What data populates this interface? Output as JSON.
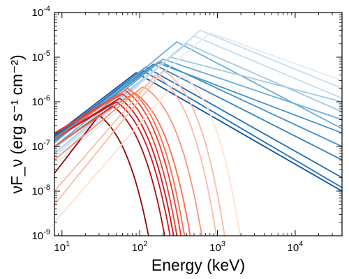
{
  "chart_data": {
    "type": "line",
    "title": "",
    "xlabel": "Energy (keV)",
    "ylabel": "νF_ν (erg s⁻¹ cm⁻²)",
    "x_scale": "log",
    "y_scale": "log",
    "xlim": [
      8,
      40000
    ],
    "ylim": [
      1e-09,
      0.0001
    ],
    "x_ticks": [
      {
        "value": 10,
        "base": "10",
        "exp": "1"
      },
      {
        "value": 100,
        "base": "10",
        "exp": "2"
      },
      {
        "value": 1000,
        "base": "10",
        "exp": "3"
      },
      {
        "value": 10000,
        "base": "10",
        "exp": "4"
      }
    ],
    "y_ticks": [
      {
        "value": 1e-09,
        "base": "10",
        "exp": "-9"
      },
      {
        "value": 1e-08,
        "base": "10",
        "exp": "-8"
      },
      {
        "value": 1e-07,
        "base": "10",
        "exp": "-7"
      },
      {
        "value": 1e-06,
        "base": "10",
        "exp": "-6"
      },
      {
        "value": 1e-05,
        "base": "10",
        "exp": "-5"
      },
      {
        "value": 0.0001,
        "base": "10",
        "exp": "-4"
      }
    ],
    "grid": false,
    "legend": "none",
    "series_blue": [
      {
        "color": "#08519c",
        "x": [
          8,
          90,
          40000
        ],
        "y": [
          1.8e-07,
          4.5e-06,
          1e-08
        ]
      },
      {
        "color": "#2171b5",
        "x": [
          8,
          120,
          40000
        ],
        "y": [
          1.6e-07,
          6e-06,
          2e-08
        ]
      },
      {
        "color": "#2171b5",
        "x": [
          8,
          110,
          40000
        ],
        "y": [
          1.7e-07,
          5e-06,
          1.2e-08
        ]
      },
      {
        "color": "#3182bd",
        "x": [
          8,
          150,
          40000
        ],
        "y": [
          1.5e-07,
          7e-06,
          5e-08
        ]
      },
      {
        "color": "#4292c6",
        "x": [
          8,
          180,
          40000
        ],
        "y": [
          1.4e-07,
          8e-06,
          1e-07
        ]
      },
      {
        "color": "#4292c6",
        "x": [
          8,
          170,
          40000
        ],
        "y": [
          1.3e-07,
          7.5e-06,
          2e-07
        ]
      },
      {
        "color": "#6baed6",
        "x": [
          8,
          300,
          40000
        ],
        "y": [
          1.2e-07,
          2.2e-05,
          2.5e-07
        ]
      },
      {
        "color": "#6baed6",
        "x": [
          8,
          200,
          40000
        ],
        "y": [
          1e-07,
          9e-06,
          4e-07
        ]
      },
      {
        "color": "#9ecae1",
        "x": [
          8,
          250,
          40000
        ],
        "y": [
          9e-08,
          1e-05,
          1e-06
        ]
      },
      {
        "color": "#9ecae1",
        "x": [
          8,
          400,
          40000
        ],
        "y": [
          7e-08,
          2e-05,
          6e-07
        ]
      },
      {
        "color": "#c6dbef",
        "x": [
          8,
          600,
          40000
        ],
        "y": [
          5e-08,
          4e-05,
          2e-06
        ]
      },
      {
        "color": "#c6dbef",
        "x": [
          8,
          500,
          40000
        ],
        "y": [
          6e-08,
          3e-05,
          1.2e-06
        ]
      },
      {
        "color": "#deebf7",
        "x": [
          8,
          800,
          40000
        ],
        "y": [
          4e-08,
          3.5e-05,
          3e-06
        ]
      }
    ],
    "series_red": [
      {
        "color": "#99000d",
        "peak_energy": 30,
        "peak_flux": 5e-07,
        "low_flux": 2.5e-08,
        "slope_low": 0.45,
        "cutoff": 13
      },
      {
        "color": "#a50f15",
        "peak_energy": 45,
        "peak_flux": 8e-07,
        "low_flux": 1e-07,
        "slope_low": 0.6,
        "cutoff": 20
      },
      {
        "color": "#cb181d",
        "peak_energy": 50,
        "peak_flux": 1e-06,
        "low_flux": 1.5e-07,
        "slope_low": 0.6,
        "cutoff": 23
      },
      {
        "color": "#cb181d",
        "peak_energy": 55,
        "peak_flux": 1.2e-06,
        "low_flux": 1.5e-07,
        "slope_low": 0.6,
        "cutoff": 25
      },
      {
        "color": "#ef3b2c",
        "peak_energy": 60,
        "peak_flux": 1.5e-06,
        "low_flux": 2e-07,
        "slope_low": 0.6,
        "cutoff": 27
      },
      {
        "color": "#ef3b2c",
        "peak_energy": 65,
        "peak_flux": 1.8e-06,
        "low_flux": 2e-07,
        "slope_low": 0.6,
        "cutoff": 30
      },
      {
        "color": "#fb6a4a",
        "peak_energy": 70,
        "peak_flux": 2e-06,
        "low_flux": 1.5e-07,
        "slope_low": 0.6,
        "cutoff": 33
      },
      {
        "color": "#fb6a4a",
        "peak_energy": 85,
        "peak_flux": 1.6e-06,
        "low_flux": 1e-07,
        "slope_low": 0.7,
        "cutoff": 40
      },
      {
        "color": "#fc9272",
        "peak_energy": 110,
        "peak_flux": 2.2e-06,
        "low_flux": 5e-08,
        "slope_low": 0.8,
        "cutoff": 55
      },
      {
        "color": "#fcbba1",
        "peak_energy": 160,
        "peak_flux": 4e-06,
        "low_flux": 1e-08,
        "slope_low": 1.0,
        "cutoff": 80
      },
      {
        "color": "#fcbba1",
        "peak_energy": 200,
        "peak_flux": 5e-06,
        "low_flux": 5e-09,
        "slope_low": 1.1,
        "cutoff": 100
      },
      {
        "color": "#fee0d2",
        "peak_energy": 350,
        "peak_flux": 4e-06,
        "low_flux": 2e-09,
        "slope_low": 1.1,
        "cutoff": 160
      }
    ]
  }
}
